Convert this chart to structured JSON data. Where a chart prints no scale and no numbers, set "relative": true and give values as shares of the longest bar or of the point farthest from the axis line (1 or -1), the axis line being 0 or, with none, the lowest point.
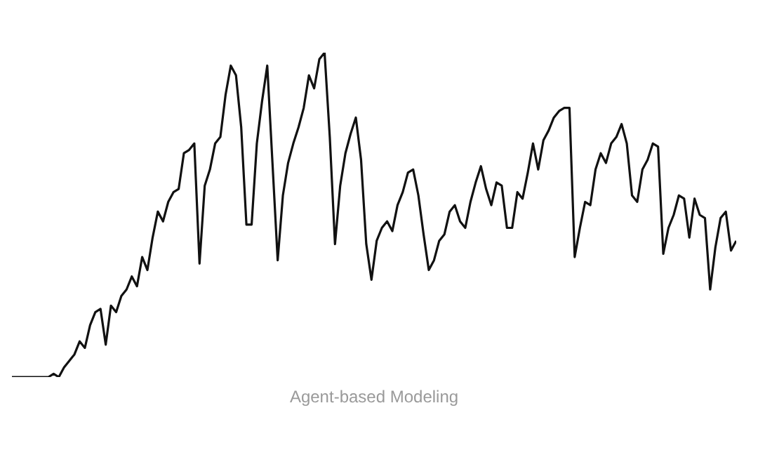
{
  "chart_data": {
    "type": "line",
    "relative": true,
    "annotations": [
      "Agent-based Modeling"
    ],
    "categories": [
      null,
      null,
      null,
      null,
      null,
      null,
      null,
      null,
      null,
      null,
      null,
      null,
      null,
      null,
      null,
      null,
      null,
      null,
      null,
      null,
      null,
      null,
      null,
      null,
      null,
      null,
      null,
      null,
      null,
      null,
      null,
      null,
      null,
      null,
      null,
      null,
      null,
      null,
      null,
      null,
      null,
      null,
      null,
      null,
      null,
      null,
      null,
      null,
      null,
      null,
      null,
      null,
      null,
      null,
      null,
      null,
      null,
      null,
      null,
      null,
      null,
      null,
      null,
      null,
      null,
      null,
      null,
      null,
      null,
      null,
      null,
      null,
      null,
      null,
      null,
      null,
      null,
      null,
      null,
      null,
      null,
      null,
      null,
      null,
      null,
      null,
      null,
      null,
      null,
      null,
      null,
      null,
      null,
      null,
      null,
      null,
      null,
      null,
      null,
      null,
      null,
      null,
      null,
      null,
      null,
      null,
      null,
      null,
      null,
      null,
      null,
      null,
      null,
      null,
      null,
      null,
      null,
      null,
      null,
      null,
      null,
      null,
      null,
      null,
      null,
      null,
      null,
      null,
      null,
      null,
      null,
      null,
      null,
      null,
      null,
      null,
      null,
      null,
      null,
      null
    ],
    "series": [
      {
        "color": "#111111",
        "values": [
          0,
          0,
          0,
          0,
          0,
          0,
          0,
          0,
          0.01,
          0,
          0.03,
          0.05,
          0.07,
          0.11,
          0.09,
          0.16,
          0.2,
          0.21,
          0.1,
          0.22,
          0.2,
          0.25,
          0.27,
          0.31,
          0.28,
          0.37,
          0.33,
          0.43,
          0.51,
          0.48,
          0.54,
          0.57,
          0.58,
          0.69,
          0.7,
          0.72,
          0.35,
          0.59,
          0.64,
          0.72,
          0.74,
          0.87,
          0.96,
          0.93,
          0.77,
          0.47,
          0.47,
          0.72,
          0.85,
          0.96,
          0.66,
          0.36,
          0.56,
          0.66,
          0.72,
          0.77,
          0.83,
          0.93,
          0.89,
          0.98,
          1,
          0.74,
          0.41,
          0.59,
          0.69,
          0.75,
          0.8,
          0.67,
          0.41,
          0.3,
          0.42,
          0.46,
          0.48,
          0.45,
          0.53,
          0.57,
          0.63,
          0.64,
          0.56,
          0.44,
          0.33,
          0.36,
          0.42,
          0.44,
          0.51,
          0.53,
          0.48,
          0.46,
          0.54,
          0.6,
          0.65,
          0.58,
          0.53,
          0.6,
          0.59,
          0.46,
          0.46,
          0.57,
          0.55,
          0.63,
          0.72,
          0.64,
          0.73,
          0.76,
          0.8,
          0.82,
          0.83,
          0.83,
          0.37,
          0.46,
          0.54,
          0.53,
          0.64,
          0.69,
          0.66,
          0.72,
          0.74,
          0.78,
          0.72,
          0.56,
          0.54,
          0.64,
          0.67,
          0.72,
          0.71,
          0.38,
          0.46,
          0.5,
          0.56,
          0.55,
          0.43,
          0.55,
          0.5,
          0.49,
          0.27,
          0.4,
          0.49,
          0.51,
          0.39,
          0.42
        ]
      }
    ]
  }
}
